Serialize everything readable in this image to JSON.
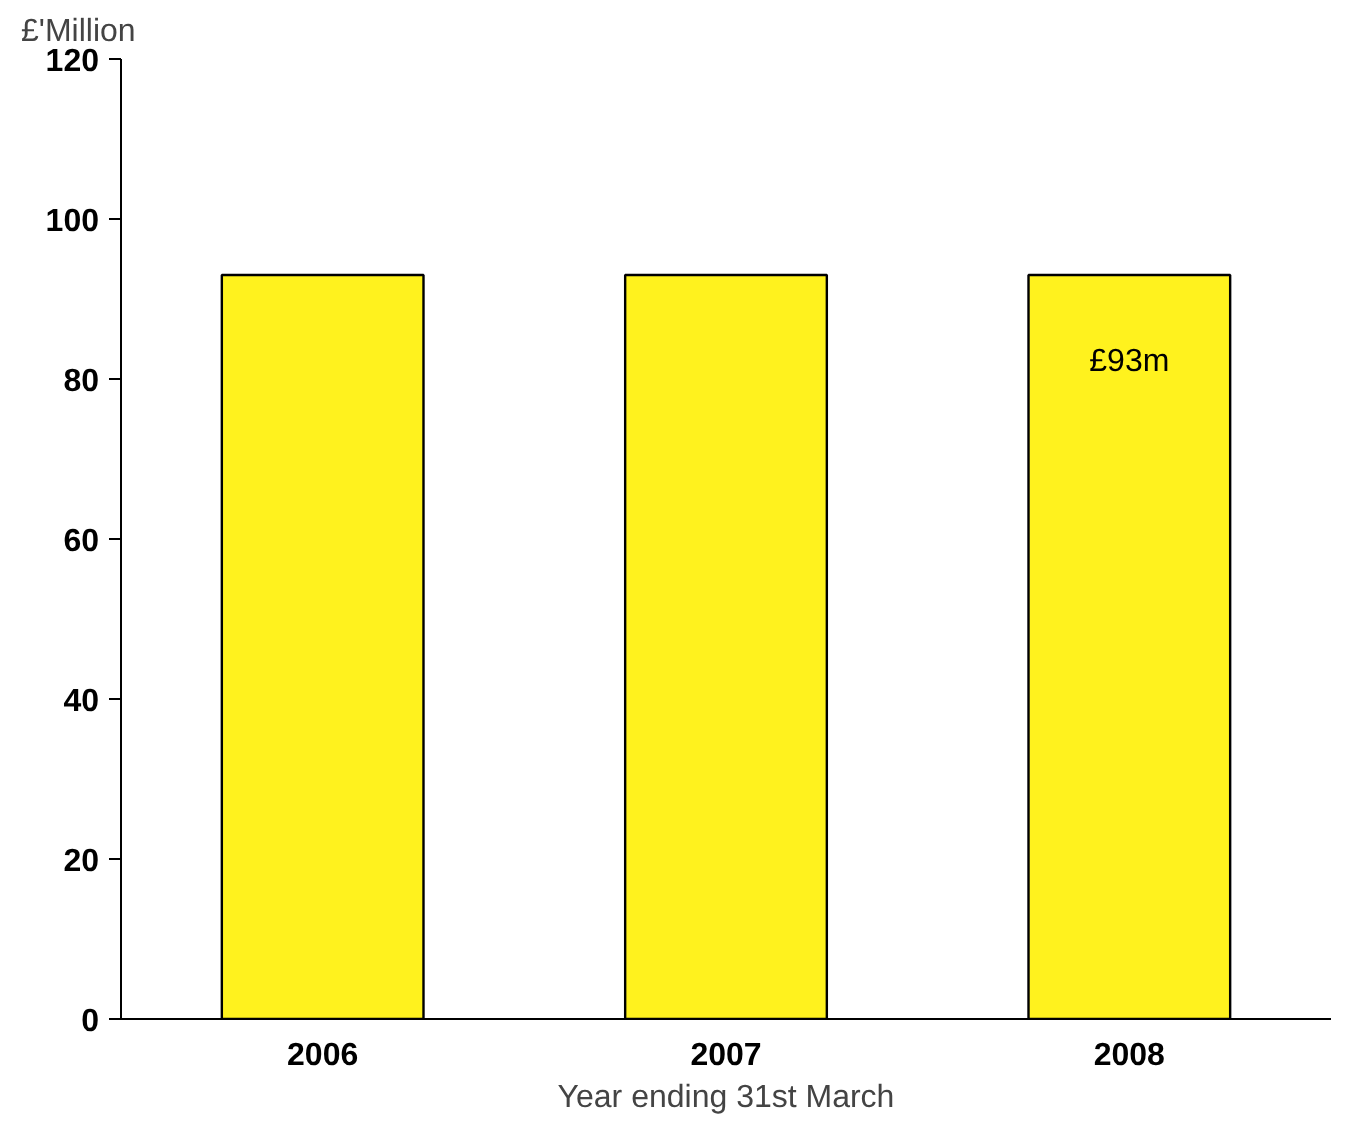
{
  "chart_data": {
    "type": "bar",
    "ylabel": "£'Million",
    "xlabel": "Year ending 31st March",
    "categories": [
      "2006",
      "2007",
      "2008"
    ],
    "values": [
      93,
      93,
      93
    ],
    "value_labels": [
      null,
      null,
      "£93m"
    ],
    "color": "#fff21e",
    "ylim": [
      0,
      120
    ],
    "yticks": [
      0,
      20,
      40,
      60,
      80,
      100,
      120
    ],
    "grid": false
  }
}
